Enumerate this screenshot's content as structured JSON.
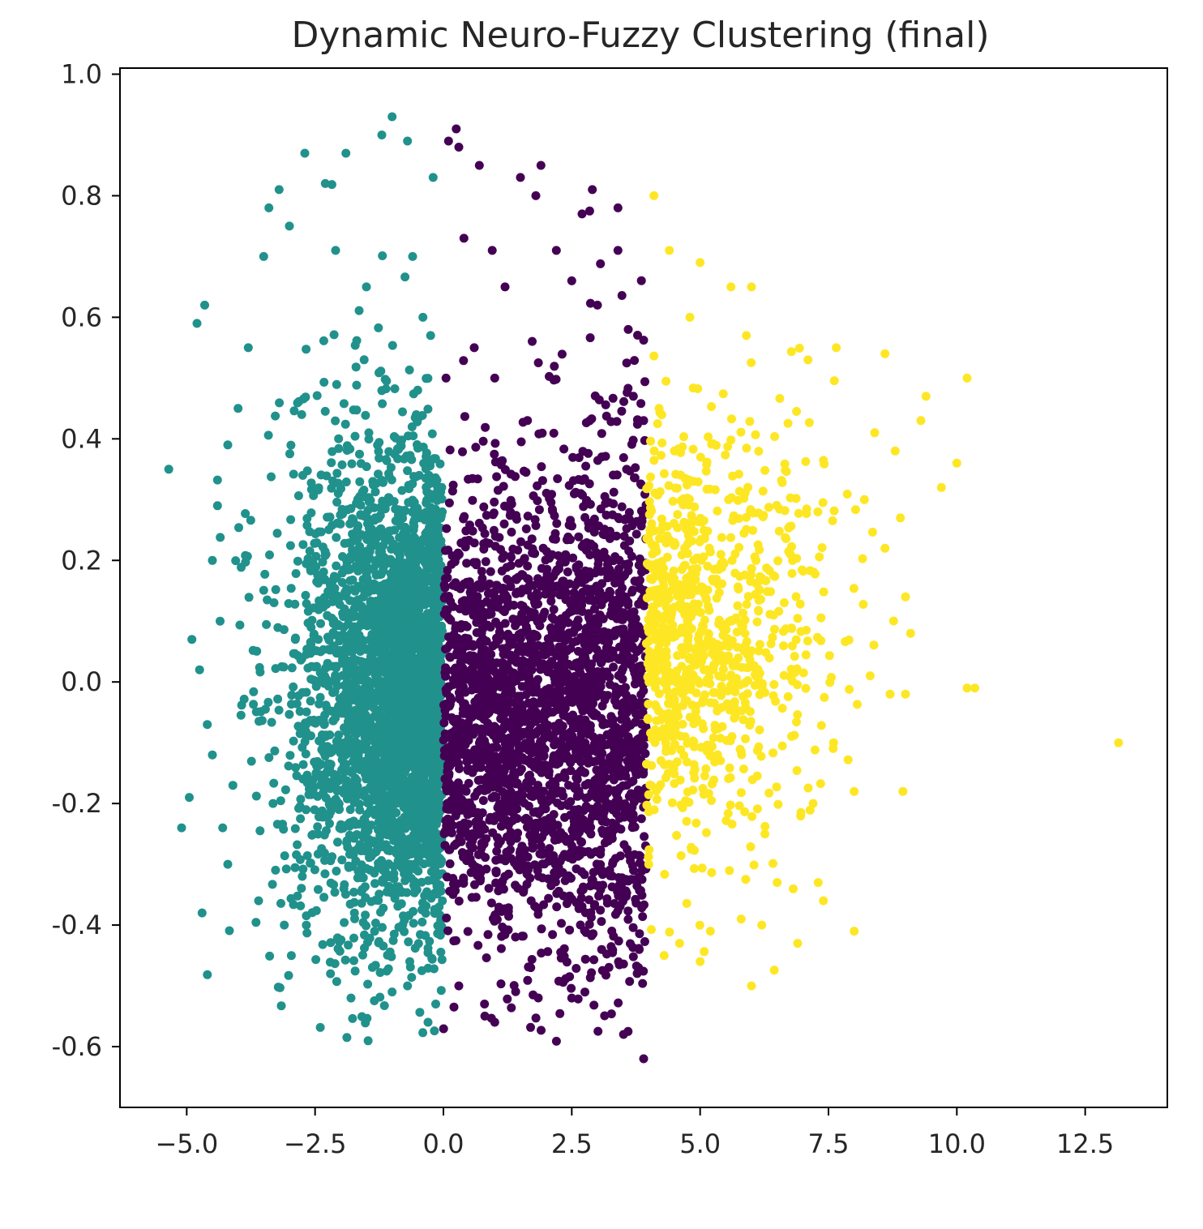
{
  "chart_data": {
    "type": "scatter",
    "title": "Dynamic Neuro-Fuzzy Clustering (final)",
    "xlabel": "",
    "ylabel": "",
    "xlim": [
      -6.3,
      14.1
    ],
    "ylim": [
      -0.7,
      1.01
    ],
    "x_ticks": [
      -5.0,
      -2.5,
      0.0,
      2.5,
      5.0,
      7.5,
      10.0,
      12.5
    ],
    "x_tick_labels": [
      "−5.0",
      "−2.5",
      "0.0",
      "2.5",
      "5.0",
      "7.5",
      "10.0",
      "12.5"
    ],
    "y_ticks": [
      1.0,
      0.8,
      0.6,
      0.4,
      0.2,
      0.0,
      -0.2,
      -0.4,
      -0.6
    ],
    "y_tick_labels": [
      "1.0",
      "0.8",
      "0.6",
      "0.4",
      "0.2",
      "0.0",
      "-0.2",
      "-0.4",
      "-0.6"
    ],
    "grid": false,
    "legend": "none",
    "series": [
      {
        "color": "#21918c",
        "x_range": [
          -5.4,
          0.0
        ],
        "density": "dense near x=-3.5 to 0, y=-0.4 to 0.35; sparse outliers to x=-5.4",
        "points": [
          [
            -5.35,
            0.35
          ],
          [
            -5.1,
            -0.24
          ],
          [
            -4.95,
            -0.19
          ],
          [
            -4.8,
            0.59
          ],
          [
            -4.65,
            0.62
          ],
          [
            -4.7,
            -0.38
          ],
          [
            -4.9,
            0.07
          ],
          [
            -4.75,
            0.02
          ],
          [
            -4.6,
            -0.07
          ],
          [
            -4.4,
            0.29
          ],
          [
            -4.2,
            0.39
          ],
          [
            -4.3,
            -0.24
          ],
          [
            -4.1,
            -0.17
          ],
          [
            -1.0,
            0.93
          ],
          [
            -1.2,
            0.9
          ],
          [
            -1.9,
            0.87
          ],
          [
            -2.7,
            0.87
          ],
          [
            -3.2,
            0.81
          ],
          [
            -3.4,
            0.78
          ],
          [
            -2.3,
            0.82
          ],
          [
            -0.7,
            0.89
          ],
          [
            -0.2,
            0.83
          ],
          [
            -3.0,
            0.75
          ],
          [
            -3.5,
            0.7
          ],
          [
            -0.6,
            0.7
          ],
          [
            -0.4,
            0.6
          ],
          [
            -1.5,
            0.65
          ],
          [
            -2.1,
            0.71
          ],
          [
            -3.8,
            0.55
          ],
          [
            -4.0,
            0.45
          ],
          [
            -0.25,
            0.57
          ],
          [
            -0.5,
            0.48
          ],
          [
            -4.5,
            0.2
          ],
          [
            -4.35,
            0.1
          ],
          [
            -4.5,
            -0.12
          ],
          [
            -4.2,
            -0.3
          ],
          [
            -3.6,
            -0.36
          ],
          [
            -3.1,
            -0.4
          ],
          [
            -2.2,
            -0.48
          ],
          [
            -1.8,
            -0.52
          ],
          [
            -1.0,
            -0.51
          ],
          [
            -0.7,
            -0.5
          ],
          [
            -0.3,
            -0.56
          ],
          [
            -0.15,
            -0.53
          ]
        ]
      },
      {
        "color": "#440154",
        "x_range": [
          0.0,
          3.95
        ],
        "density": "dense between x=0 and 3.9, y=-0.45 to 0.35",
        "points": [
          [
            0.25,
            0.91
          ],
          [
            0.1,
            0.89
          ],
          [
            0.3,
            0.88
          ],
          [
            0.7,
            0.85
          ],
          [
            1.9,
            0.85
          ],
          [
            1.8,
            0.8
          ],
          [
            1.5,
            0.83
          ],
          [
            2.9,
            0.81
          ],
          [
            3.4,
            0.78
          ],
          [
            2.7,
            0.77
          ],
          [
            0.4,
            0.73
          ],
          [
            0.95,
            0.71
          ],
          [
            3.4,
            0.71
          ],
          [
            2.2,
            0.71
          ],
          [
            1.2,
            0.65
          ],
          [
            2.5,
            0.66
          ],
          [
            3.0,
            0.62
          ],
          [
            0.6,
            0.55
          ],
          [
            3.6,
            0.58
          ],
          [
            1.0,
            0.5
          ],
          [
            3.7,
            0.47
          ],
          [
            0.05,
            0.5
          ],
          [
            3.9,
            0.43
          ],
          [
            0.3,
            -0.5
          ],
          [
            1.0,
            -0.56
          ],
          [
            0.8,
            -0.53
          ],
          [
            2.5,
            -0.52
          ],
          [
            3.8,
            -0.47
          ],
          [
            1.7,
            -0.47
          ],
          [
            3.9,
            -0.62
          ]
        ]
      },
      {
        "color": "#fde725",
        "x_range": [
          3.95,
          13.2
        ],
        "density": "moderate between x=4 and 8, y=-0.3 to 0.45; sparse tail to x=13.2",
        "points": [
          [
            4.1,
            0.8
          ],
          [
            4.4,
            0.71
          ],
          [
            5.0,
            0.69
          ],
          [
            5.6,
            0.65
          ],
          [
            6.0,
            0.65
          ],
          [
            4.8,
            0.6
          ],
          [
            5.9,
            0.57
          ],
          [
            7.1,
            0.53
          ],
          [
            8.6,
            0.54
          ],
          [
            10.2,
            0.5
          ],
          [
            9.4,
            0.47
          ],
          [
            9.3,
            0.43
          ],
          [
            8.4,
            0.41
          ],
          [
            8.8,
            0.38
          ],
          [
            10.0,
            0.36
          ],
          [
            9.7,
            0.32
          ],
          [
            8.2,
            0.3
          ],
          [
            8.9,
            0.27
          ],
          [
            8.6,
            0.22
          ],
          [
            9.0,
            0.14
          ],
          [
            9.1,
            0.08
          ],
          [
            8.7,
            -0.02
          ],
          [
            9.0,
            -0.02
          ],
          [
            10.2,
            -0.01
          ],
          [
            10.35,
            -0.01
          ],
          [
            13.15,
            -0.1
          ],
          [
            7.6,
            -0.1
          ],
          [
            8.0,
            -0.18
          ],
          [
            8.95,
            -0.18
          ],
          [
            7.2,
            -0.2
          ],
          [
            6.5,
            -0.33
          ],
          [
            7.3,
            -0.33
          ],
          [
            7.4,
            -0.36
          ],
          [
            8.0,
            -0.41
          ],
          [
            6.9,
            -0.43
          ],
          [
            6.2,
            -0.4
          ],
          [
            5.8,
            -0.39
          ],
          [
            5.2,
            -0.41
          ],
          [
            5.0,
            -0.46
          ],
          [
            6.0,
            -0.5
          ],
          [
            4.3,
            -0.45
          ],
          [
            4.6,
            -0.43
          ],
          [
            4.0,
            -0.3
          ],
          [
            4.2,
            0.45
          ],
          [
            4.5,
            0.38
          ]
        ]
      }
    ]
  }
}
